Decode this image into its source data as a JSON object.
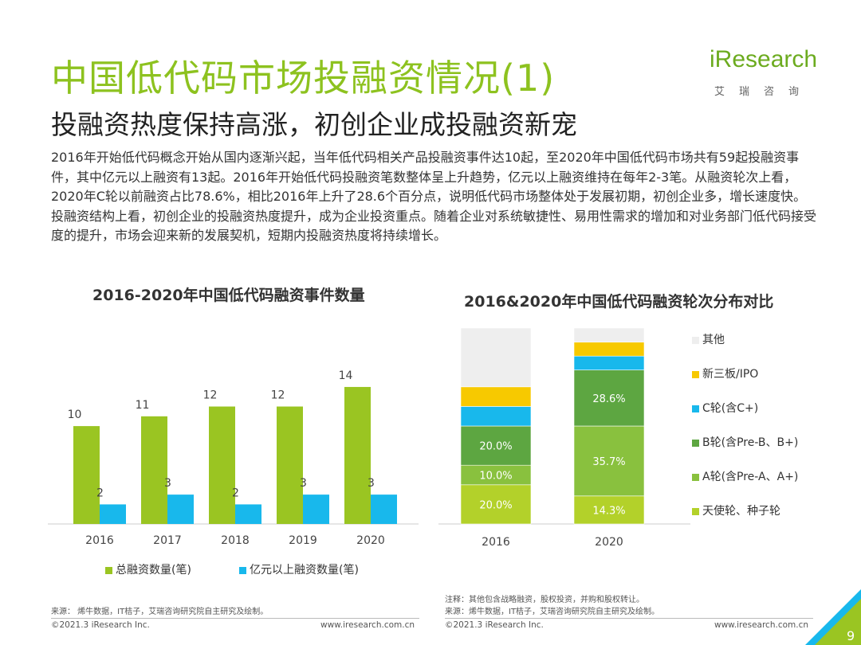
{
  "header": {
    "title": "中国低代码市场投融资情况(1)",
    "subtitle": "投融资热度保持高涨，初创企业成投融资新宠",
    "logo_text": "iResearch",
    "logo_cn": "艾瑞咨询"
  },
  "paragraph": "2016年开始低代码概念开始从国内逐渐兴起，当年低代码相关产品投融资事件达10起，至2020年中国低代码市场共有59起投融资事件，其中亿元以上融资有13起。2016年开始低代码投融资笔数整体呈上升趋势，亿元以上融资维持在每年2-3笔。从融资轮次上看，2020年C轮以前融资占比78.6%，相比2016年上升了28.6个百分点，说明低代码市场整体处于发展初期，初创企业多，增长速度快。投融资结构上看，初创企业的投融资热度提升，成为企业投资重点。随着企业对系统敏捷性、易用性需求的增加和对业务部门低代码接受度的提升，市场会迎来新的发展契机，短期内投融资热度将持续增长。",
  "colors": {
    "green": "#9ac522",
    "cyan": "#18b8ec",
    "yellow": "#f7c900",
    "gray": "#eeeeee",
    "dark_green": "#5da641",
    "mid_green": "#89c13e",
    "light_green": "#b3d12a"
  },
  "chart_data": [
    {
      "type": "bar",
      "title": "2016-2020年中国低代码融资事件数量",
      "categories": [
        "2016",
        "2017",
        "2018",
        "2019",
        "2020"
      ],
      "series": [
        {
          "name": "总融资数量(笔)",
          "values": [
            10,
            11,
            12,
            12,
            14
          ]
        },
        {
          "name": "亿元以上融资数量(笔)",
          "values": [
            2,
            3,
            2,
            3,
            3
          ]
        }
      ],
      "ylim": [
        0,
        16
      ]
    },
    {
      "type": "bar",
      "stacked": true,
      "percent": true,
      "title": "2016&2020年中国低代码融资轮次分布对比",
      "categories": [
        "2016",
        "2020"
      ],
      "series": [
        {
          "name": "天使轮、种子轮",
          "values": [
            20.0,
            14.3
          ],
          "labels": [
            "20.0%",
            "14.3%"
          ]
        },
        {
          "name": "A轮(含Pre-A、A+)",
          "values": [
            10.0,
            35.7
          ],
          "labels": [
            "10.0%",
            "35.7%"
          ]
        },
        {
          "name": "B轮(含Pre-B、B+)",
          "values": [
            20.0,
            28.6
          ],
          "labels": [
            "20.0%",
            "28.6%"
          ]
        },
        {
          "name": "C轮(含C+)",
          "values": [
            10.0,
            7.1
          ],
          "labels": [
            "",
            ""
          ]
        },
        {
          "name": "新三板/IPO",
          "values": [
            10.0,
            7.1
          ],
          "labels": [
            "",
            ""
          ]
        },
        {
          "name": "其他",
          "values": [
            30.0,
            7.2
          ],
          "labels": [
            "",
            ""
          ]
        }
      ]
    }
  ],
  "notes": {
    "left_source": "来源：  烯牛数据，IT桔子，艾瑞咨询研究院自主研究及绘制。",
    "right_note": "注释：其他包含战略融资，股权投资，并购和股权转让。",
    "right_source": "来源：烯牛数据，IT桔子，艾瑞咨询研究院自主研究及绘制。"
  },
  "footer": {
    "copyright_left": "©2021.3 iResearch Inc.",
    "url_left": "www.iresearch.com.cn",
    "copyright_right": "©2021.3 iResearch Inc.",
    "url_right": "www.iresearch.com.cn",
    "page_number": "9"
  }
}
